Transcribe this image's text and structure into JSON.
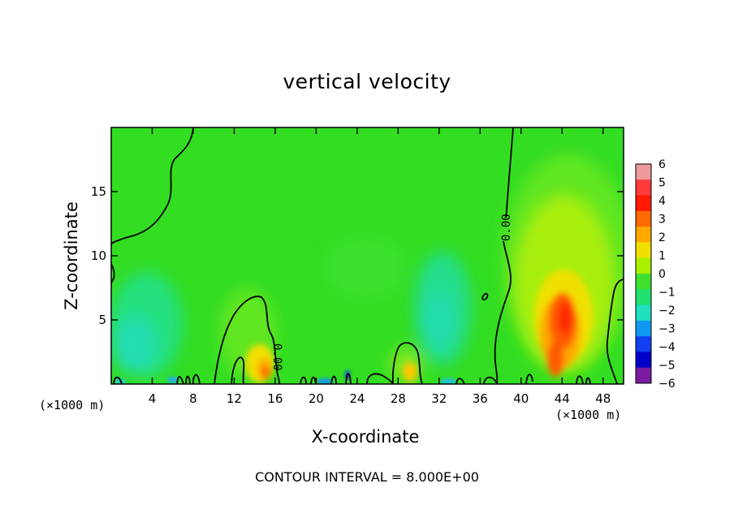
{
  "chart_data": {
    "type": "heatmap",
    "title": "vertical velocity",
    "xlabel": "X-coordinate",
    "ylabel": "Z-coordinate",
    "x_unit_left": "(×1000 m)",
    "x_unit_right": "(×1000 m)",
    "xlim": [
      0,
      50
    ],
    "ylim": [
      0,
      20
    ],
    "x_ticks": [
      4,
      8,
      12,
      16,
      20,
      24,
      28,
      32,
      36,
      40,
      44,
      48
    ],
    "y_ticks": [
      5,
      10,
      15
    ],
    "colorbar_ticks": [
      6,
      5,
      4,
      3,
      2,
      1,
      0,
      -1,
      -2,
      -3,
      -4,
      -5,
      -6
    ],
    "colorbar_colors": [
      "#ee9a9a",
      "#ff3a3a",
      "#ff1a00",
      "#ff6a00",
      "#ffa800",
      "#f0e000",
      "#a8f000",
      "#40e030",
      "#20e070",
      "#20e0c0",
      "#1098f0",
      "#1040f0",
      "#0000c8",
      "#7a1aa0"
    ],
    "contour_label": "0.00",
    "contour_interval_text": "CONTOUR INTERVAL = 8.000E+00",
    "features": [
      {
        "name": "updraft",
        "x": 15.2,
        "z": 1.0,
        "w": 2.5
      },
      {
        "name": "updraft",
        "x": 29.3,
        "z": 1.2,
        "w": 1.5
      },
      {
        "name": "updraft",
        "x": 44.2,
        "z": 5.0,
        "w": 5.0
      },
      {
        "name": "downdraft",
        "x": 3.5,
        "z": 4.5,
        "w": -1.5
      },
      {
        "name": "downdraft",
        "x": 32.5,
        "z": 6.0,
        "w": -1.2
      },
      {
        "name": "downdraft",
        "x": 21.0,
        "z": 0.3,
        "w": -2.0
      }
    ]
  }
}
